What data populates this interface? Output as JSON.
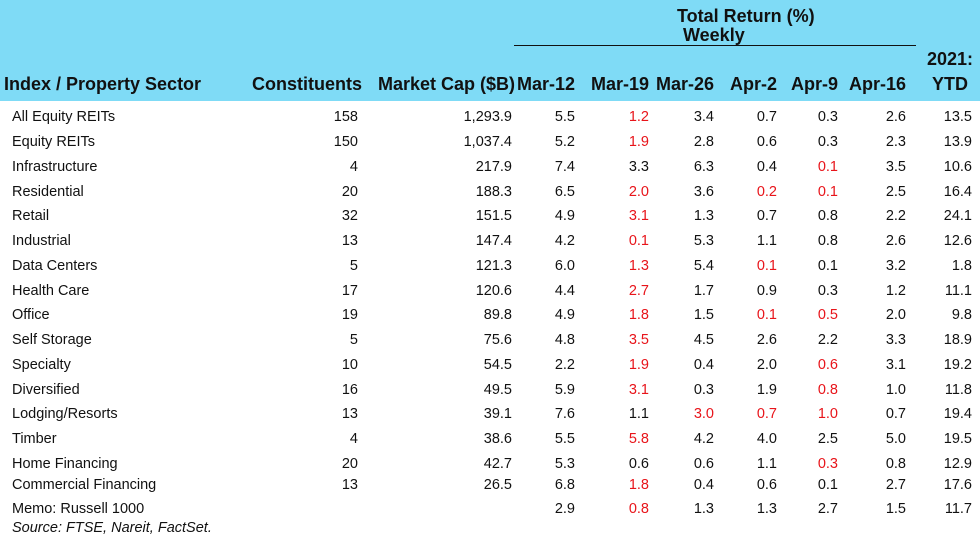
{
  "header": {
    "group_title": "Total Return (%)",
    "group_subtitle": "Weekly",
    "col_sector": "Index / Property Sector",
    "col_constituents": "Constituents",
    "col_marketcap": "Market Cap ($B)",
    "weeks": [
      "Mar-12",
      "Mar-19",
      "Mar-26",
      "Apr-2",
      "Apr-9",
      "Apr-16"
    ],
    "ytd_line1": "2021:",
    "ytd_line2": "YTD"
  },
  "colors": {
    "header_bg": "#7fdbf6",
    "negative": "#e8141a",
    "text": "#111111"
  },
  "chart_data": {
    "type": "table",
    "columns": [
      "Index / Property Sector",
      "Constituents",
      "Market Cap ($B)",
      "Mar-12",
      "Mar-19",
      "Mar-26",
      "Apr-2",
      "Apr-9",
      "Apr-16",
      "2021: YTD"
    ],
    "rows": [
      {
        "sector": "All Equity REITs",
        "constituents": "158",
        "market_cap": "1,293.9",
        "weekly": [
          "5.5",
          "1.2",
          "3.4",
          "0.7",
          "0.3",
          "2.6"
        ],
        "negative": [
          false,
          true,
          false,
          false,
          false,
          false
        ],
        "ytd": "13.5"
      },
      {
        "sector": "Equity REITs",
        "constituents": "150",
        "market_cap": "1,037.4",
        "weekly": [
          "5.2",
          "1.9",
          "2.8",
          "0.6",
          "0.3",
          "2.3"
        ],
        "negative": [
          false,
          true,
          false,
          false,
          false,
          false
        ],
        "ytd": "13.9"
      },
      {
        "sector": "Infrastructure",
        "constituents": "4",
        "market_cap": "217.9",
        "weekly": [
          "7.4",
          "3.3",
          "6.3",
          "0.4",
          "0.1",
          "3.5"
        ],
        "negative": [
          false,
          false,
          false,
          false,
          true,
          false
        ],
        "ytd": "10.6"
      },
      {
        "sector": "Residential",
        "constituents": "20",
        "market_cap": "188.3",
        "weekly": [
          "6.5",
          "2.0",
          "3.6",
          "0.2",
          "0.1",
          "2.5"
        ],
        "negative": [
          false,
          true,
          false,
          true,
          true,
          false
        ],
        "ytd": "16.4"
      },
      {
        "sector": "Retail",
        "constituents": "32",
        "market_cap": "151.5",
        "weekly": [
          "4.9",
          "3.1",
          "1.3",
          "0.7",
          "0.8",
          "2.2"
        ],
        "negative": [
          false,
          true,
          false,
          false,
          false,
          false
        ],
        "ytd": "24.1"
      },
      {
        "sector": "Industrial",
        "constituents": "13",
        "market_cap": "147.4",
        "weekly": [
          "4.2",
          "0.1",
          "5.3",
          "1.1",
          "0.8",
          "2.6"
        ],
        "negative": [
          false,
          true,
          false,
          false,
          false,
          false
        ],
        "ytd": "12.6"
      },
      {
        "sector": "Data Centers",
        "constituents": "5",
        "market_cap": "121.3",
        "weekly": [
          "6.0",
          "1.3",
          "5.4",
          "0.1",
          "0.1",
          "3.2"
        ],
        "negative": [
          false,
          true,
          false,
          true,
          false,
          false
        ],
        "ytd": "1.8"
      },
      {
        "sector": "Health Care",
        "constituents": "17",
        "market_cap": "120.6",
        "weekly": [
          "4.4",
          "2.7",
          "1.7",
          "0.9",
          "0.3",
          "1.2"
        ],
        "negative": [
          false,
          true,
          false,
          false,
          false,
          false
        ],
        "ytd": "11.1"
      },
      {
        "sector": "Office",
        "constituents": "19",
        "market_cap": "89.8",
        "weekly": [
          "4.9",
          "1.8",
          "1.5",
          "0.1",
          "0.5",
          "2.0"
        ],
        "negative": [
          false,
          true,
          false,
          true,
          true,
          false
        ],
        "ytd": "9.8"
      },
      {
        "sector": "Self Storage",
        "constituents": "5",
        "market_cap": "75.6",
        "weekly": [
          "4.8",
          "3.5",
          "4.5",
          "2.6",
          "2.2",
          "3.3"
        ],
        "negative": [
          false,
          true,
          false,
          false,
          false,
          false
        ],
        "ytd": "18.9"
      },
      {
        "sector": "Specialty",
        "constituents": "10",
        "market_cap": "54.5",
        "weekly": [
          "2.2",
          "1.9",
          "0.4",
          "2.0",
          "0.6",
          "3.1"
        ],
        "negative": [
          false,
          true,
          false,
          false,
          true,
          false
        ],
        "ytd": "19.2"
      },
      {
        "sector": "Diversified",
        "constituents": "16",
        "market_cap": "49.5",
        "weekly": [
          "5.9",
          "3.1",
          "0.3",
          "1.9",
          "0.8",
          "1.0"
        ],
        "negative": [
          false,
          true,
          false,
          false,
          true,
          false
        ],
        "ytd": "11.8"
      },
      {
        "sector": "Lodging/Resorts",
        "constituents": "13",
        "market_cap": "39.1",
        "weekly": [
          "7.6",
          "1.1",
          "3.0",
          "0.7",
          "1.0",
          "0.7"
        ],
        "negative": [
          false,
          false,
          true,
          true,
          true,
          false
        ],
        "ytd": "19.4"
      },
      {
        "sector": "Timber",
        "constituents": "4",
        "market_cap": "38.6",
        "weekly": [
          "5.5",
          "5.8",
          "4.2",
          "4.0",
          "2.5",
          "5.0"
        ],
        "negative": [
          false,
          true,
          false,
          false,
          false,
          false
        ],
        "ytd": "19.5"
      },
      {
        "sector": "Home Financing",
        "constituents": "20",
        "market_cap": "42.7",
        "weekly": [
          "5.3",
          "0.6",
          "0.6",
          "1.1",
          "0.3",
          "0.8"
        ],
        "negative": [
          false,
          false,
          false,
          false,
          true,
          false
        ],
        "ytd": "12.9"
      },
      {
        "sector": "Commercial Financing",
        "constituents": "13",
        "market_cap": "26.5",
        "weekly": [
          "6.8",
          "1.8",
          "0.4",
          "0.6",
          "0.1",
          "2.7"
        ],
        "negative": [
          false,
          true,
          false,
          false,
          false,
          false
        ],
        "ytd": "17.6"
      },
      {
        "sector": "Memo: Russell 1000",
        "constituents": "",
        "market_cap": "",
        "weekly": [
          "2.9",
          "0.8",
          "1.3",
          "1.3",
          "2.7",
          "1.5"
        ],
        "negative": [
          false,
          true,
          false,
          false,
          false,
          false
        ],
        "ytd": "11.7"
      }
    ]
  },
  "source": "Source: FTSE, Nareit, FactSet."
}
